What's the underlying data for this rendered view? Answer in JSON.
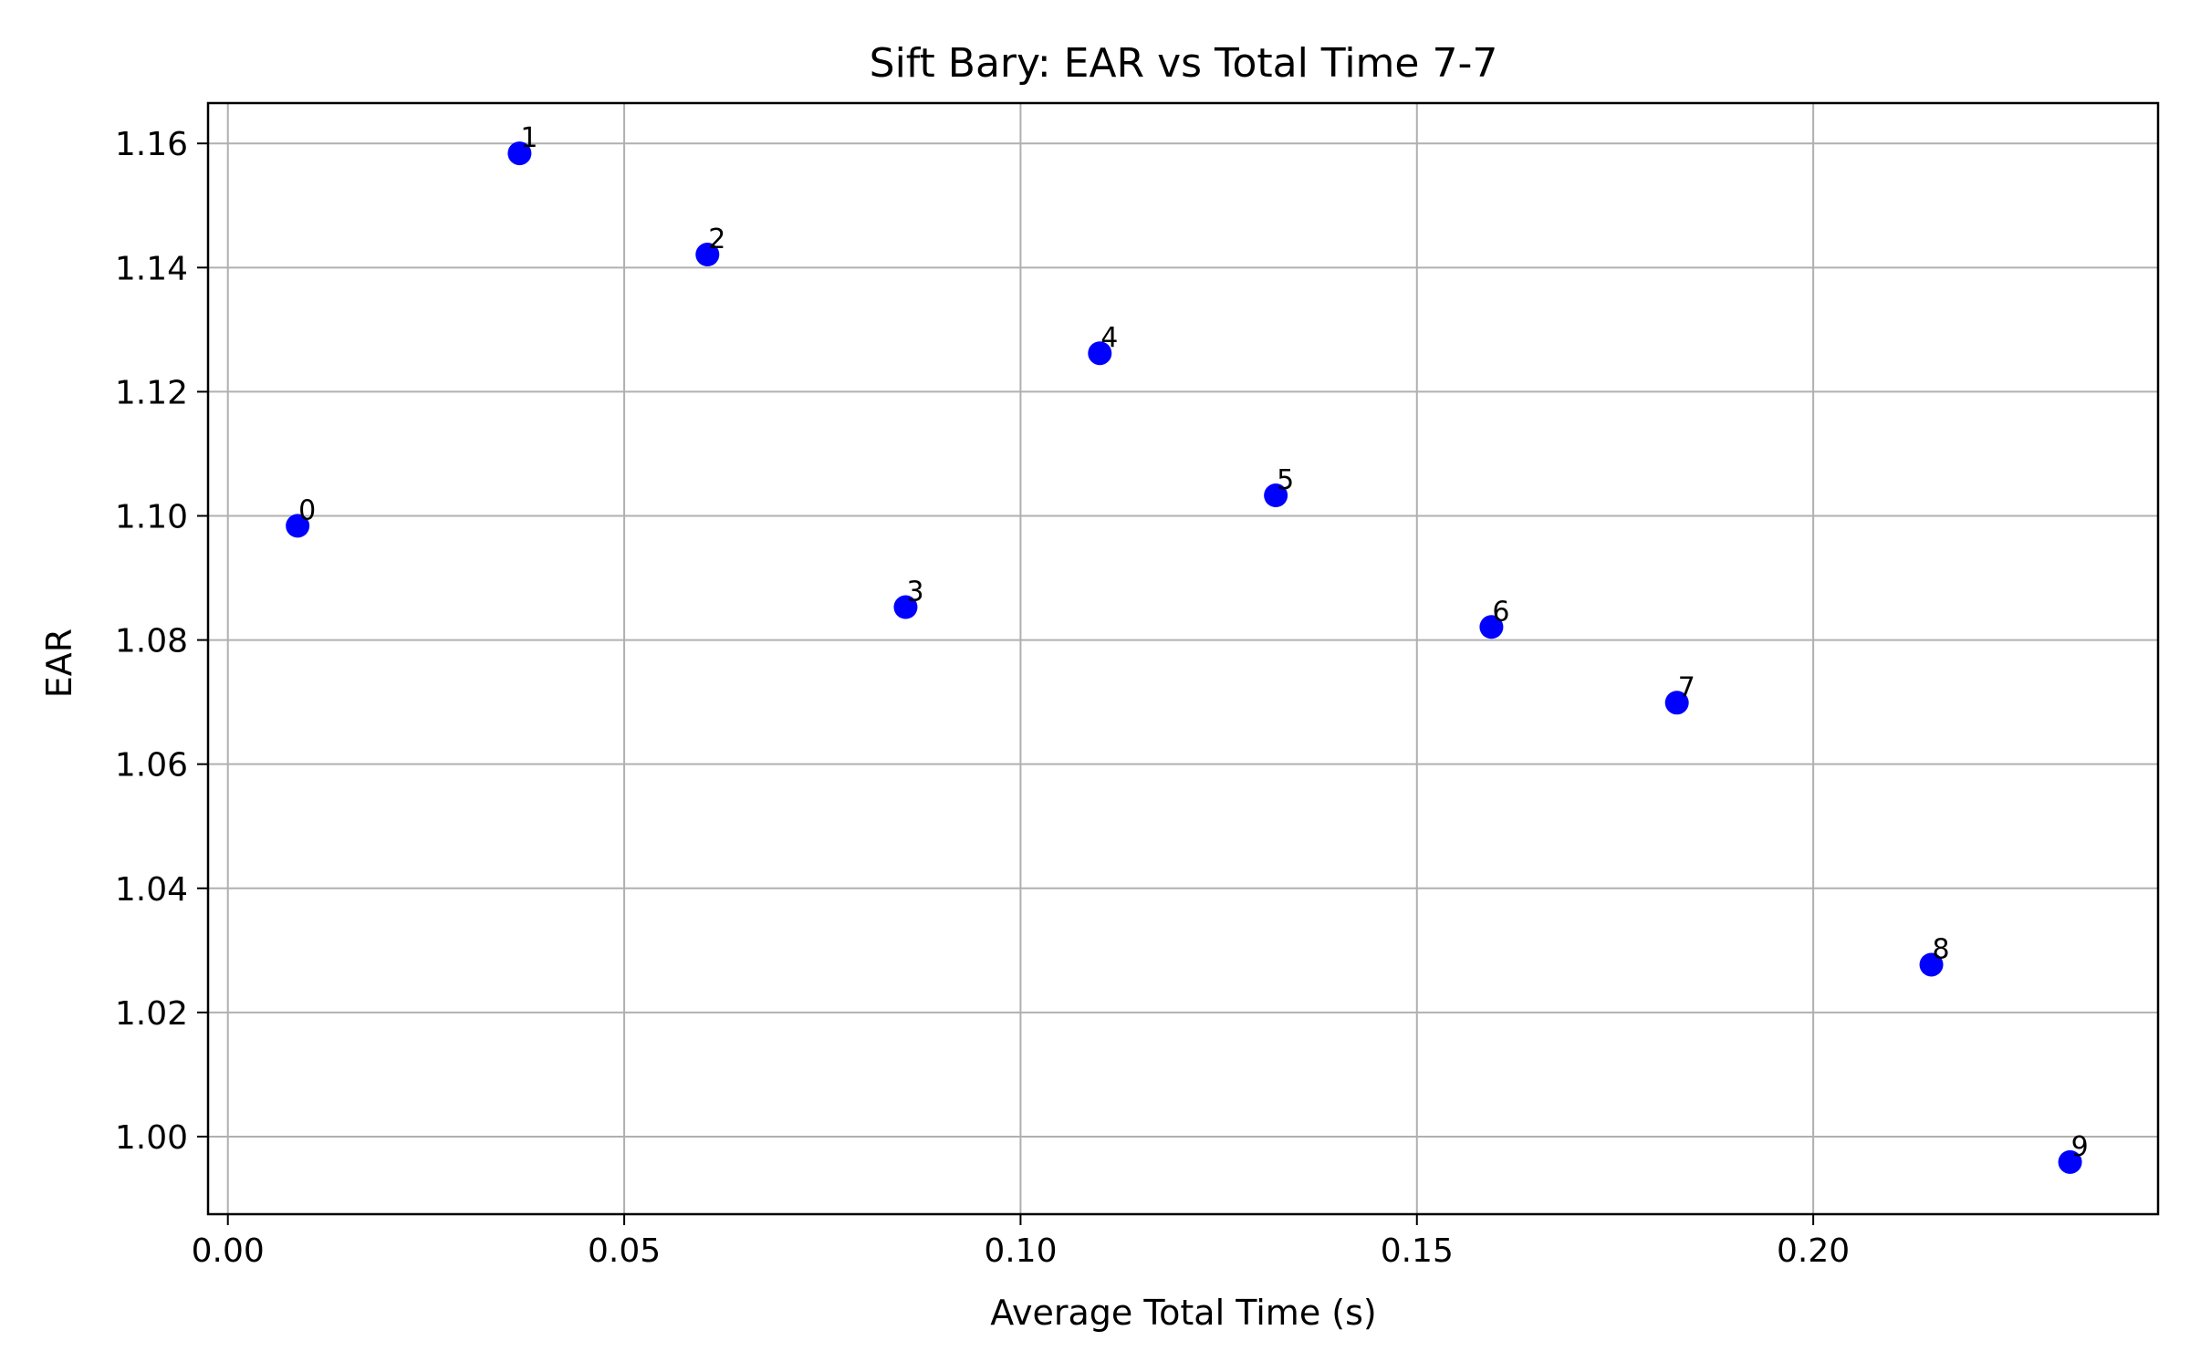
{
  "chart_data": {
    "type": "scatter",
    "title": "Sift Bary: EAR vs Total Time 7-7",
    "xlabel": "Average Total Time (s)",
    "ylabel": "EAR",
    "xlim": [
      -0.0025,
      0.2435
    ],
    "ylim": [
      0.9875,
      1.1665
    ],
    "xticks": [
      0.0,
      0.05,
      0.1,
      0.15,
      0.2
    ],
    "xtick_labels": [
      "0.00",
      "0.05",
      "0.10",
      "0.15",
      "0.20"
    ],
    "yticks": [
      1.0,
      1.02,
      1.04,
      1.06,
      1.08,
      1.1,
      1.12,
      1.14,
      1.16
    ],
    "ytick_labels": [
      "1.00",
      "1.02",
      "1.04",
      "1.06",
      "1.08",
      "1.10",
      "1.12",
      "1.14",
      "1.16"
    ],
    "grid": true,
    "marker_color": "#0000ff",
    "points": [
      {
        "label": "0",
        "x": 0.0088,
        "y": 1.0984
      },
      {
        "label": "1",
        "x": 0.0368,
        "y": 1.1584
      },
      {
        "label": "2",
        "x": 0.0605,
        "y": 1.1421
      },
      {
        "label": "3",
        "x": 0.0855,
        "y": 1.0853
      },
      {
        "label": "4",
        "x": 0.11,
        "y": 1.1262
      },
      {
        "label": "5",
        "x": 0.1322,
        "y": 1.1033
      },
      {
        "label": "6",
        "x": 0.1594,
        "y": 1.0821
      },
      {
        "label": "7",
        "x": 0.1828,
        "y": 1.0699
      },
      {
        "label": "8",
        "x": 0.2149,
        "y": 1.0277
      },
      {
        "label": "9",
        "x": 0.2324,
        "y": 0.9959
      }
    ]
  }
}
